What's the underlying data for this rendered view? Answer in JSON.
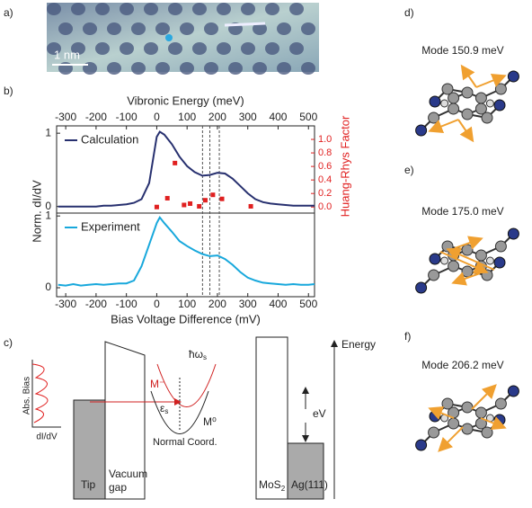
{
  "panel_labels": [
    "a)",
    "b)",
    "c)",
    "d)",
    "e)",
    "f)"
  ],
  "panel_a": {
    "scale_label": "1 nm"
  },
  "panel_b": {
    "type": "line",
    "x_top_label": "Vibronic Energy (meV)",
    "x_label": "Bias Voltage Difference (mV)",
    "y_label": "Norm. dI/dV",
    "y2_label": "Huang-Rhys Factor",
    "xlim": [
      -330,
      520
    ],
    "xticks": [
      -300,
      -200,
      -100,
      0,
      100,
      200,
      300,
      400,
      500
    ],
    "x": [
      -325,
      -300,
      -275,
      -250,
      -225,
      -200,
      -175,
      -150,
      -125,
      -100,
      -75,
      -50,
      -25,
      0,
      10,
      25,
      50,
      75,
      100,
      125,
      150,
      175,
      200,
      225,
      250,
      275,
      300,
      325,
      350,
      375,
      400,
      425,
      450,
      475,
      500,
      520
    ],
    "top": {
      "ylim": [
        -0.09,
        1.1
      ],
      "yticks": [
        0,
        1
      ],
      "y2lim": [
        -0.09,
        1.2
      ],
      "y2ticks": [
        {
          "value": 0,
          "label": "0.0"
        },
        {
          "value": 0.2,
          "label": "0.2"
        },
        {
          "value": 0.4,
          "label": "0.4"
        },
        {
          "value": 0.6,
          "label": "0.6"
        },
        {
          "value": 0.8,
          "label": "0.8"
        },
        {
          "value": 1,
          "label": "1.0"
        }
      ],
      "series": [
        {
          "name": "Calculation",
          "color": "#27306f",
          "values": [
            0,
            0,
            0,
            0,
            0,
            0,
            0.01,
            0.01,
            0.02,
            0.03,
            0.05,
            0.1,
            0.32,
            0.95,
            1.02,
            0.98,
            0.85,
            0.68,
            0.55,
            0.47,
            0.42,
            0.43,
            0.46,
            0.45,
            0.38,
            0.28,
            0.18,
            0.1,
            0.06,
            0.04,
            0.03,
            0.02,
            0.01,
            0.01,
            0.01,
            0.01
          ]
        }
      ],
      "factors": {
        "color": "#e02020",
        "x": [
          0,
          35,
          60,
          90,
          110,
          140,
          160,
          185,
          215,
          310
        ],
        "values": [
          0,
          0.13,
          0.65,
          0.03,
          0.05,
          0.01,
          0.1,
          0.18,
          0.12,
          0.01
        ]
      },
      "mode_lines": [
        150.9,
        175.0,
        206.2
      ]
    },
    "bottom": {
      "ylim": [
        -0.125,
        1.04
      ],
      "yticks": [
        0,
        1
      ],
      "series": [
        {
          "name": "Experiment",
          "color": "#18a8dc",
          "values": [
            0.04,
            0.03,
            0.05,
            0.03,
            0.04,
            0.05,
            0.04,
            0.05,
            0.06,
            0.06,
            0.1,
            0.3,
            0.6,
            0.9,
            0.98,
            0.9,
            0.78,
            0.65,
            0.58,
            0.52,
            0.47,
            0.44,
            0.45,
            0.4,
            0.32,
            0.22,
            0.14,
            0.1,
            0.07,
            0.06,
            0.05,
            0.04,
            0.05,
            0.04,
            0.04,
            0.05
          ]
        }
      ]
    }
  },
  "panel_c": {
    "inset_y": "Abs. Bias",
    "inset_x": "dI/dV",
    "tip": "Tip",
    "vacuum": [
      "Vacuum",
      "gap"
    ],
    "m_minus": "M⁻",
    "hbar": "ħω",
    "hbar_sub": "s",
    "eps": "ε",
    "eps_sub": "s",
    "m_zero": "M⁰",
    "coord": "Normal Coord.",
    "mos2": "MoS",
    "mos2_sub": "2",
    "ag": "Ag(111)",
    "ev": "eV",
    "energy": "Energy"
  },
  "modes": [
    "Mode 150.9 meV",
    "Mode 175.0 meV",
    "Mode 206.2 meV"
  ]
}
